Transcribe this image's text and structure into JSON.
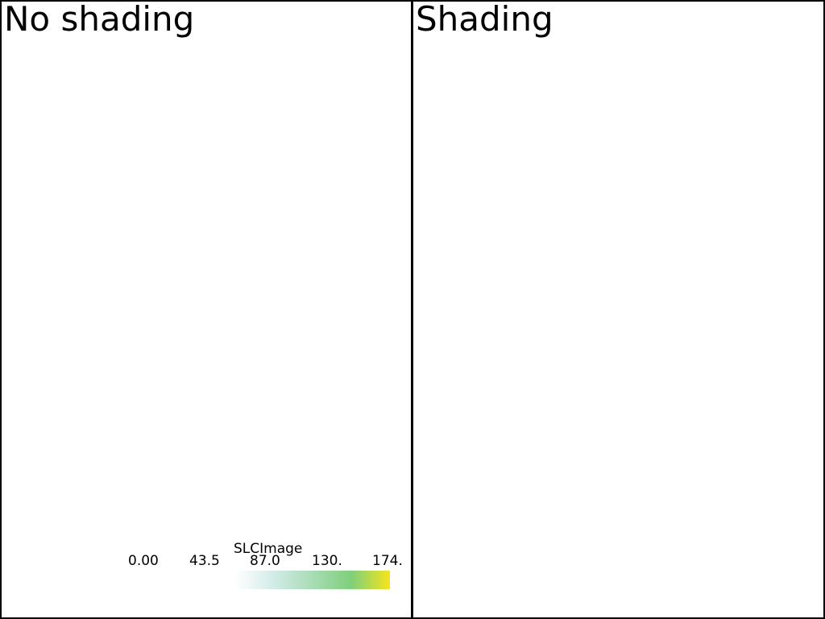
{
  "viewports": {
    "left": {
      "title": "No shading"
    },
    "right": {
      "title": "Shading"
    }
  },
  "scalar_bar": {
    "title": "SLCImage",
    "tick_labels": [
      "0.00",
      "43.5",
      "87.0",
      "130.",
      "174."
    ],
    "colormap_stops": [
      "#ffffff",
      "#d2ebe8",
      "#a8dcb4",
      "#7fcf7c",
      "#f5e51b"
    ]
  }
}
